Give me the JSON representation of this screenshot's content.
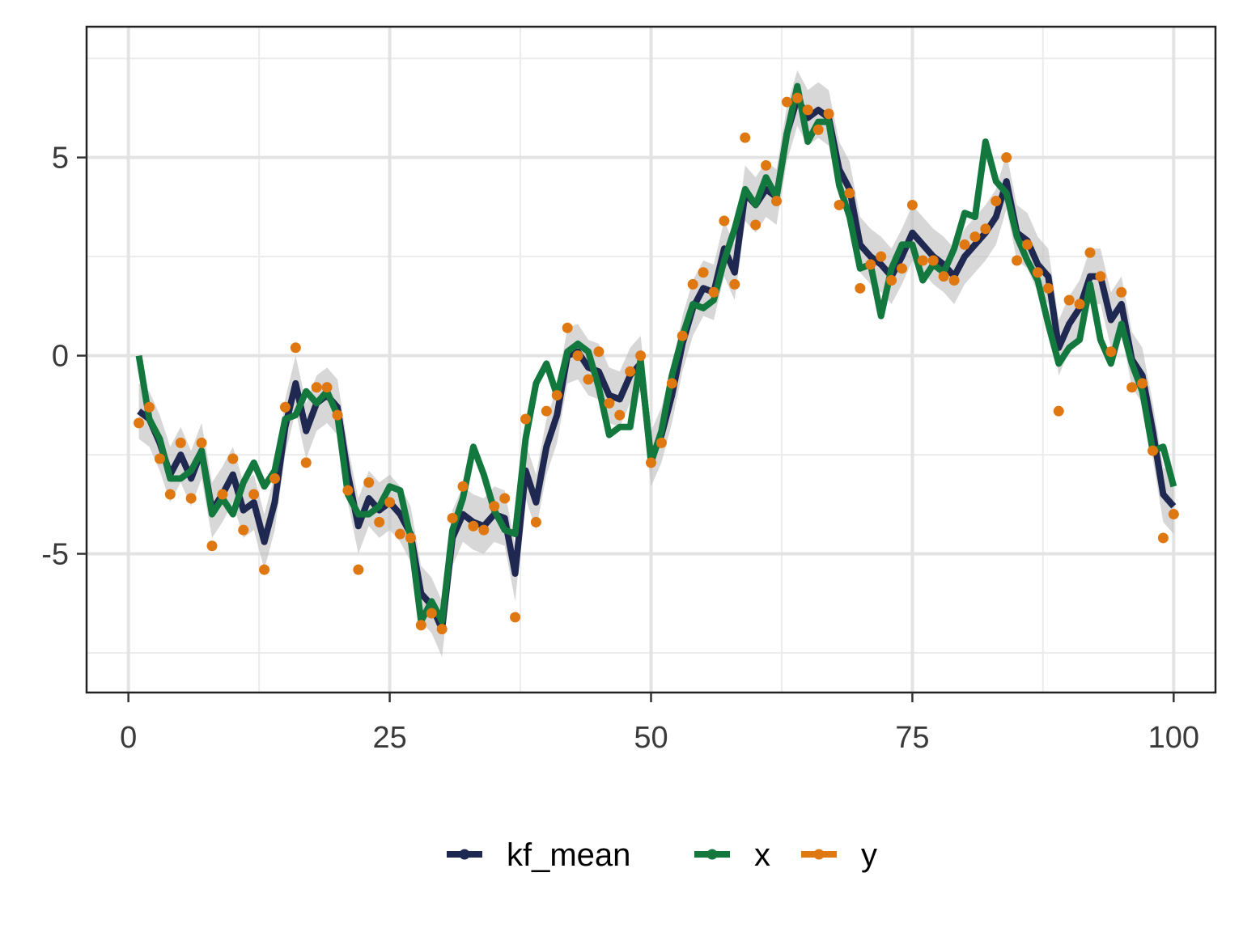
{
  "chart_data": {
    "type": "line",
    "title": "",
    "xlabel": "",
    "ylabel": "",
    "xlim": [
      -4,
      104
    ],
    "ylim": [
      -8.5,
      8.3
    ],
    "x_ticks": [
      0,
      25,
      50,
      75,
      100
    ],
    "y_ticks": [
      -5,
      0,
      5
    ],
    "x_minor": [
      12.5,
      37.5,
      62.5,
      87.5
    ],
    "y_minor": [
      -7.5,
      -2.5,
      2.5,
      7.5
    ],
    "grid": true,
    "legend_position": "bottom",
    "legend": [
      "kf_mean",
      "x",
      "y"
    ],
    "colors": {
      "kf_mean": "#1f2850",
      "x": "#13783e",
      "y": "#e07812",
      "band": "#bdbdbd"
    },
    "x": [
      1,
      2,
      3,
      4,
      5,
      6,
      7,
      8,
      9,
      10,
      11,
      12,
      13,
      14,
      15,
      16,
      17,
      18,
      19,
      20,
      21,
      22,
      23,
      24,
      25,
      26,
      27,
      28,
      29,
      30,
      31,
      32,
      33,
      34,
      35,
      36,
      37,
      38,
      39,
      40,
      41,
      42,
      43,
      44,
      45,
      46,
      47,
      48,
      49,
      50,
      51,
      52,
      53,
      54,
      55,
      56,
      57,
      58,
      59,
      60,
      61,
      62,
      63,
      64,
      65,
      66,
      67,
      68,
      69,
      70,
      71,
      72,
      73,
      74,
      75,
      76,
      77,
      78,
      79,
      80,
      81,
      82,
      83,
      84,
      85,
      86,
      87,
      88,
      89,
      90,
      91,
      92,
      93,
      94,
      95,
      96,
      97,
      98,
      99,
      100
    ],
    "series": [
      {
        "name": "kf_mean",
        "values": [
          -1.4,
          -1.6,
          -2.2,
          -3.0,
          -2.5,
          -3.1,
          -2.4,
          -3.9,
          -3.5,
          -3.0,
          -3.9,
          -3.7,
          -4.7,
          -3.7,
          -1.8,
          -0.7,
          -1.9,
          -1.2,
          -1.0,
          -1.3,
          -3.0,
          -4.3,
          -3.6,
          -3.9,
          -3.7,
          -4.0,
          -4.5,
          -6.0,
          -6.3,
          -6.9,
          -4.6,
          -4.0,
          -4.2,
          -4.3,
          -4.0,
          -4.1,
          -5.5,
          -2.9,
          -3.7,
          -2.3,
          -1.5,
          0.0,
          0.1,
          -0.3,
          -0.4,
          -1.0,
          -1.1,
          -0.5,
          -0.2,
          -2.6,
          -2.0,
          -1.0,
          0.3,
          1.2,
          1.7,
          1.6,
          2.7,
          2.1,
          4.1,
          3.8,
          4.2,
          4.0,
          5.6,
          6.5,
          6.0,
          6.2,
          6.0,
          4.7,
          4.2,
          2.8,
          2.5,
          2.3,
          2.0,
          2.5,
          3.1,
          2.8,
          2.5,
          2.3,
          2.0,
          2.5,
          2.8,
          3.1,
          3.5,
          4.4,
          3.1,
          2.9,
          2.3,
          2.0,
          0.2,
          0.8,
          1.2,
          2.0,
          2.0,
          0.9,
          1.3,
          -0.1,
          -0.5,
          -1.9,
          -3.5,
          -3.8
        ]
      },
      {
        "name": "x",
        "values": [
          0.0,
          -1.6,
          -2.1,
          -3.1,
          -3.1,
          -2.9,
          -2.4,
          -4.0,
          -3.6,
          -4.0,
          -3.2,
          -2.7,
          -3.3,
          -2.9,
          -1.6,
          -1.5,
          -0.9,
          -1.2,
          -0.9,
          -1.5,
          -3.5,
          -4.0,
          -4.0,
          -3.8,
          -3.3,
          -3.4,
          -4.6,
          -6.7,
          -6.2,
          -6.7,
          -4.4,
          -3.6,
          -2.3,
          -3.0,
          -3.9,
          -4.4,
          -4.5,
          -2.1,
          -0.7,
          -0.2,
          -1.0,
          0.1,
          0.3,
          0.1,
          -0.8,
          -2.0,
          -1.8,
          -1.8,
          -0.1,
          -2.7,
          -1.9,
          -0.5,
          0.5,
          1.3,
          1.2,
          1.4,
          2.4,
          3.2,
          4.2,
          3.8,
          4.5,
          4.0,
          5.6,
          6.8,
          5.4,
          5.9,
          5.9,
          4.3,
          3.5,
          2.2,
          2.3,
          1.0,
          2.2,
          2.8,
          2.8,
          1.9,
          2.3,
          2.1,
          2.7,
          3.6,
          3.5,
          5.4,
          4.4,
          4.1,
          3.0,
          2.4,
          1.9,
          0.8,
          -0.2,
          0.2,
          0.4,
          1.8,
          0.4,
          -0.2,
          0.8,
          -0.2,
          -0.9,
          -2.4,
          -2.3,
          -3.3
        ]
      },
      {
        "name": "y",
        "values": [
          -1.7,
          -1.3,
          -2.6,
          -3.5,
          -2.2,
          -3.6,
          -2.2,
          -4.8,
          -3.5,
          -2.6,
          -4.4,
          -3.5,
          -5.4,
          -3.1,
          -1.3,
          0.2,
          -2.7,
          -0.8,
          -0.8,
          -1.5,
          -3.4,
          -5.4,
          -3.2,
          -4.2,
          -3.7,
          -4.5,
          -4.6,
          -6.8,
          -6.5,
          -6.9,
          -4.1,
          -3.3,
          -4.3,
          -4.4,
          -3.8,
          -3.6,
          -6.6,
          -1.6,
          -4.2,
          -1.4,
          -1.0,
          0.7,
          0.0,
          -0.6,
          0.1,
          -1.2,
          -1.5,
          -0.4,
          0.0,
          -2.7,
          -2.2,
          -0.7,
          0.5,
          1.8,
          2.1,
          1.6,
          3.4,
          1.8,
          5.5,
          3.3,
          4.8,
          3.9,
          6.4,
          6.5,
          6.2,
          5.7,
          6.1,
          3.8,
          4.1,
          1.7,
          2.3,
          2.5,
          1.9,
          2.2,
          3.8,
          2.4,
          2.4,
          2.0,
          1.9,
          2.8,
          3.0,
          3.2,
          3.9,
          5.0,
          2.4,
          2.8,
          2.1,
          1.7,
          -1.4,
          1.4,
          1.3,
          2.6,
          2.0,
          0.1,
          1.6,
          -0.8,
          -0.7,
          -2.4,
          -4.6,
          -4.0
        ]
      }
    ]
  }
}
